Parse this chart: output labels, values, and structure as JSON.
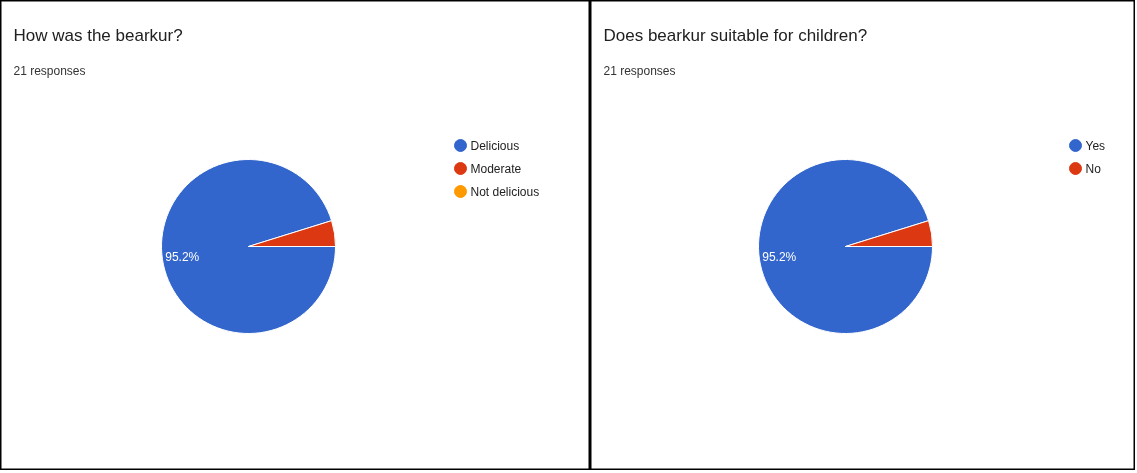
{
  "chart_data": [
    {
      "type": "pie",
      "title": "How was the bearkur?",
      "subtitle": "21 responses",
      "categories": [
        "Delicious",
        "Moderate",
        "Not delicious"
      ],
      "values": [
        95.2,
        4.8,
        0
      ],
      "colors": [
        "#3366cc",
        "#dc3912",
        "#ff9900"
      ],
      "value_labels": [
        "95.2%",
        null,
        null
      ],
      "legend": "right"
    },
    {
      "type": "pie",
      "title": "Does bearkur suitable for children?",
      "subtitle": "21 responses",
      "categories": [
        "Yes",
        "No"
      ],
      "values": [
        95.2,
        4.8
      ],
      "colors": [
        "#3366cc",
        "#dc3912"
      ],
      "value_labels": [
        "95.2%",
        null
      ],
      "legend": "right"
    }
  ]
}
